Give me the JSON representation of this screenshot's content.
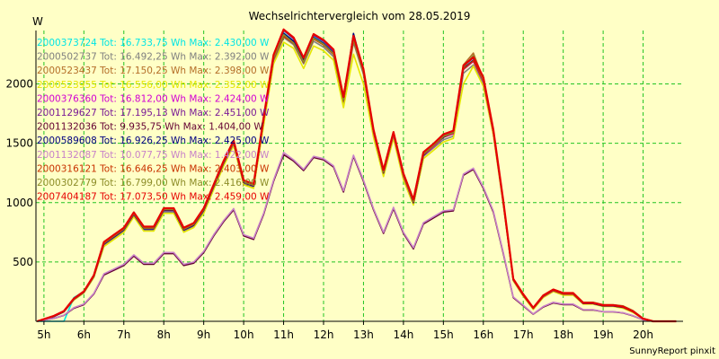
{
  "chart_data": {
    "type": "line",
    "title": "Wechselrichtervergleich vom 28.05.2019",
    "ylabel": "W",
    "xlabel": "",
    "footer": "SunnyReport pinxit",
    "x_ticks": [
      "5h",
      "6h",
      "7h",
      "8h",
      "9h",
      "10h",
      "11h",
      "12h",
      "13h",
      "14h",
      "15h",
      "16h",
      "17h",
      "18h",
      "19h",
      "20h"
    ],
    "y_ticks": [
      500,
      1000,
      1500,
      2000
    ],
    "xlim": [
      4.8,
      21.0
    ],
    "ylim": [
      0,
      2450
    ],
    "grid": true,
    "legend_position": "top-left",
    "colors": {
      "background": "#ffffc6",
      "grid": "#22c422",
      "axis": "#000000"
    },
    "legend": [
      {
        "id": "2000373724",
        "text": "2000373724 Tot: 16.733,75 Wh Max: 2.430,00 W",
        "color": "#00e5e5"
      },
      {
        "id": "2000502737",
        "text": "2000502737 Tot: 16.492,25 Wh Max: 2.392,00 W",
        "color": "#808080"
      },
      {
        "id": "2000523437",
        "text": "2000523437 Tot: 17.150,25 Wh Max: 2.398,00 W",
        "color": "#b46e28"
      },
      {
        "id": "2000523955",
        "text": "2000523955 Tot: 16.556,00 Wh Max: 2.352,00 W",
        "color": "#e6e600"
      },
      {
        "id": "2000376360",
        "text": "2000376360 Tot: 16.812,00 Wh Max: 2.424,00 W",
        "color": "#d200d2"
      },
      {
        "id": "2001129627",
        "text": "2001129627 Tot: 17.195,13 Wh Max: 2.451,00 W",
        "color": "#7a1a96"
      },
      {
        "id": "2001132036",
        "text": "2001132036 Tot: 9.935,75 Wh Max: 1.404,00 W",
        "color": "#640032"
      },
      {
        "id": "2000589608",
        "text": "2000589608 Tot: 16.926,25 Wh Max: 2.425,00 W",
        "color": "#000080"
      },
      {
        "id": "2001132087",
        "text": "2001132087 Tot: 10.077,75 Wh Max: 1.422,00 W",
        "color": "#c882c8"
      },
      {
        "id": "2000316121",
        "text": "2000316121 Tot: 16.646,25 Wh Max: 2.403,00 W",
        "color": "#c83200"
      },
      {
        "id": "2000302779",
        "text": "2000302779 Tot: 16.799,00 Wh Max: 2.416,00 W",
        "color": "#8c8c28"
      },
      {
        "id": "2007404187",
        "text": "2007404187 Tot: 17.073,50 Wh Max: 2.459,00 W",
        "color": "#e60000"
      }
    ],
    "x": [
      4.83,
      5.25,
      5.5,
      5.75,
      6.0,
      6.25,
      6.5,
      6.75,
      7.0,
      7.25,
      7.5,
      7.75,
      8.0,
      8.25,
      8.5,
      8.75,
      9.0,
      9.25,
      9.5,
      9.75,
      10.0,
      10.25,
      10.5,
      10.75,
      11.0,
      11.25,
      11.5,
      11.75,
      12.0,
      12.25,
      12.5,
      12.75,
      13.0,
      13.25,
      13.5,
      13.75,
      14.0,
      14.25,
      14.5,
      14.75,
      15.0,
      15.25,
      15.5,
      15.75,
      16.0,
      16.25,
      16.5,
      16.75,
      17.0,
      17.25,
      17.5,
      17.75,
      18.0,
      18.25,
      18.5,
      18.75,
      19.0,
      19.25,
      19.5,
      19.75,
      20.0,
      20.25,
      20.5,
      20.83
    ],
    "series": [
      {
        "name": "2000373724",
        "color": "#00e5e5",
        "values": [
          0,
          0,
          0,
          200,
          250,
          390,
          660,
          720,
          780,
          920,
          790,
          790,
          950,
          950,
          780,
          820,
          950,
          1150,
          1350,
          1520,
          1180,
          1150,
          1700,
          2230,
          2430,
          2360,
          2200,
          2400,
          2350,
          2270,
          1870,
          2390,
          2110,
          1600,
          1260,
          1580,
          1230,
          1010,
          1410,
          1480,
          1560,
          1590,
          2130,
          2200,
          2030,
          1600,
          1000,
          350,
          220,
          110,
          210,
          260,
          230,
          230,
          150,
          150,
          130,
          130,
          120,
          80,
          20,
          0,
          0,
          0
        ]
      },
      {
        "name": "2000502737",
        "color": "#808080",
        "values": [
          0,
          40,
          80,
          180,
          240,
          370,
          640,
          700,
          760,
          890,
          770,
          770,
          920,
          920,
          760,
          800,
          920,
          1120,
          1320,
          1490,
          1160,
          1130,
          1670,
          2190,
          2392,
          2330,
          2170,
          2360,
          2310,
          2230,
          1840,
          2350,
          2080,
          1580,
          1240,
          1560,
          1210,
          990,
          1390,
          1460,
          1530,
          1560,
          2090,
          2160,
          2000,
          1580,
          990,
          345,
          215,
          105,
          205,
          255,
          225,
          225,
          148,
          148,
          128,
          128,
          115,
          78,
          20,
          0,
          0,
          0
        ]
      },
      {
        "name": "2000523437",
        "color": "#b46e28",
        "values": [
          0,
          45,
          85,
          190,
          250,
          385,
          660,
          720,
          780,
          910,
          790,
          790,
          945,
          945,
          780,
          820,
          945,
          1145,
          1345,
          1510,
          1180,
          1150,
          1690,
          2210,
          2398,
          2350,
          2190,
          2380,
          2330,
          2250,
          1860,
          2370,
          2100,
          1600,
          1260,
          1580,
          1230,
          1030,
          1420,
          1490,
          1570,
          1600,
          2160,
          2260,
          2040,
          1610,
          1010,
          360,
          230,
          115,
          220,
          270,
          240,
          240,
          160,
          160,
          140,
          140,
          130,
          90,
          25,
          0,
          0,
          0
        ]
      },
      {
        "name": "2000523955",
        "color": "#e6e600",
        "values": [
          0,
          40,
          80,
          180,
          240,
          370,
          630,
          690,
          750,
          880,
          760,
          760,
          910,
          910,
          750,
          790,
          910,
          1110,
          1310,
          1480,
          1150,
          1120,
          1650,
          2170,
          2352,
          2300,
          2130,
          2320,
          2280,
          2200,
          1800,
          2250,
          2000,
          1550,
          1220,
          1540,
          1190,
          980,
          1370,
          1440,
          1510,
          1540,
          2000,
          2150,
          1980,
          1570,
          980,
          340,
          210,
          100,
          200,
          250,
          220,
          220,
          145,
          145,
          125,
          125,
          110,
          75,
          18,
          0,
          0,
          0
        ]
      },
      {
        "name": "2000376360",
        "color": "#d200d2",
        "values": [
          0,
          42,
          82,
          185,
          245,
          380,
          650,
          710,
          770,
          900,
          780,
          780,
          935,
          935,
          770,
          810,
          935,
          1135,
          1335,
          1500,
          1170,
          1140,
          1690,
          2210,
          2424,
          2350,
          2190,
          2390,
          2340,
          2260,
          1860,
          2380,
          2100,
          1590,
          1250,
          1570,
          1220,
          1000,
          1400,
          1470,
          1550,
          1580,
          2120,
          2190,
          2020,
          1590,
          995,
          348,
          218,
          108,
          208,
          258,
          228,
          228,
          150,
          150,
          130,
          130,
          118,
          80,
          20,
          0,
          0,
          0
        ]
      },
      {
        "name": "2001129627",
        "color": "#7a1a96",
        "values": [
          0,
          45,
          85,
          190,
          250,
          385,
          665,
          725,
          785,
          915,
          795,
          795,
          950,
          950,
          785,
          825,
          950,
          1150,
          1350,
          1520,
          1185,
          1155,
          1710,
          2240,
          2451,
          2380,
          2210,
          2410,
          2360,
          2280,
          1880,
          2400,
          2120,
          1610,
          1270,
          1590,
          1240,
          1020,
          1420,
          1490,
          1570,
          1600,
          2150,
          2220,
          2050,
          1610,
          1010,
          355,
          225,
          112,
          215,
          265,
          235,
          235,
          155,
          155,
          135,
          135,
          122,
          82,
          22,
          0,
          0,
          0
        ]
      },
      {
        "name": "2001132036",
        "color": "#640032",
        "values": [
          0,
          25,
          50,
          110,
          140,
          230,
          390,
          430,
          470,
          550,
          480,
          480,
          570,
          570,
          470,
          490,
          580,
          720,
          840,
          940,
          720,
          690,
          900,
          1180,
          1404,
          1350,
          1270,
          1380,
          1360,
          1300,
          1090,
          1390,
          1180,
          940,
          740,
          950,
          740,
          610,
          820,
          870,
          920,
          930,
          1230,
          1280,
          1120,
          920,
          570,
          200,
          130,
          60,
          120,
          155,
          140,
          140,
          95,
          95,
          80,
          80,
          70,
          45,
          12,
          0,
          0,
          0
        ]
      },
      {
        "name": "2000589608",
        "color": "#000080",
        "values": [
          0,
          40,
          80,
          185,
          245,
          378,
          650,
          710,
          770,
          900,
          780,
          780,
          935,
          935,
          770,
          810,
          935,
          1135,
          1335,
          1505,
          1170,
          1140,
          1700,
          2220,
          2425,
          2360,
          2200,
          2390,
          2340,
          2260,
          1860,
          2425,
          2110,
          1600,
          1250,
          1580,
          1230,
          1000,
          1400,
          1480,
          1550,
          1590,
          2130,
          2200,
          2030,
          1600,
          1000,
          350,
          220,
          110,
          210,
          260,
          230,
          230,
          150,
          150,
          130,
          130,
          118,
          80,
          20,
          0,
          0,
          0
        ]
      },
      {
        "name": "2001132087",
        "color": "#c882c8",
        "values": [
          0,
          26,
          52,
          115,
          145,
          235,
          400,
          440,
          480,
          560,
          490,
          490,
          580,
          580,
          480,
          500,
          590,
          730,
          850,
          950,
          730,
          700,
          910,
          1190,
          1422,
          1360,
          1280,
          1390,
          1370,
          1310,
          1100,
          1400,
          1190,
          950,
          750,
          960,
          750,
          620,
          830,
          880,
          930,
          940,
          1240,
          1290,
          1130,
          930,
          580,
          205,
          135,
          62,
          125,
          160,
          145,
          145,
          98,
          98,
          82,
          82,
          72,
          48,
          12,
          0,
          0,
          0
        ]
      },
      {
        "name": "2000316121",
        "color": "#c83200",
        "values": [
          0,
          43,
          83,
          187,
          247,
          382,
          655,
          715,
          775,
          905,
          785,
          785,
          940,
          940,
          775,
          815,
          940,
          1140,
          1340,
          1505,
          1175,
          1145,
          1690,
          2210,
          2403,
          2340,
          2180,
          2380,
          2330,
          2250,
          1855,
          2370,
          2095,
          1595,
          1255,
          1575,
          1225,
          1005,
          1405,
          1475,
          1555,
          1585,
          2125,
          2195,
          2025,
          1595,
          998,
          350,
          220,
          110,
          210,
          260,
          230,
          230,
          152,
          152,
          132,
          132,
          120,
          80,
          20,
          0,
          0,
          0
        ]
      },
      {
        "name": "2000302779",
        "color": "#8c8c28",
        "values": [
          0,
          44,
          84,
          188,
          248,
          383,
          658,
          718,
          778,
          908,
          788,
          788,
          943,
          943,
          778,
          818,
          943,
          1143,
          1343,
          1508,
          1178,
          1148,
          1695,
          2220,
          2416,
          2345,
          2185,
          2385,
          2335,
          2255,
          1860,
          2375,
          2100,
          1600,
          1260,
          1580,
          1230,
          1010,
          1410,
          1480,
          1560,
          1590,
          2140,
          2240,
          2035,
          1605,
          1005,
          355,
          225,
          112,
          215,
          265,
          235,
          235,
          158,
          158,
          138,
          138,
          128,
          88,
          24,
          0,
          0,
          0
        ]
      },
      {
        "name": "2007404187",
        "color": "#e60000",
        "values": [
          0,
          46,
          86,
          192,
          252,
          388,
          668,
          728,
          788,
          918,
          798,
          798,
          953,
          953,
          788,
          828,
          953,
          1153,
          1353,
          1523,
          1188,
          1158,
          1715,
          2245,
          2459,
          2390,
          2220,
          2420,
          2370,
          2290,
          1890,
          2405,
          2125,
          1615,
          1275,
          1595,
          1245,
          1025,
          1425,
          1495,
          1575,
          1605,
          2155,
          2225,
          2055,
          1615,
          1015,
          358,
          228,
          114,
          218,
          268,
          238,
          238,
          156,
          156,
          136,
          136,
          124,
          84,
          22,
          0,
          0,
          0
        ]
      }
    ]
  }
}
